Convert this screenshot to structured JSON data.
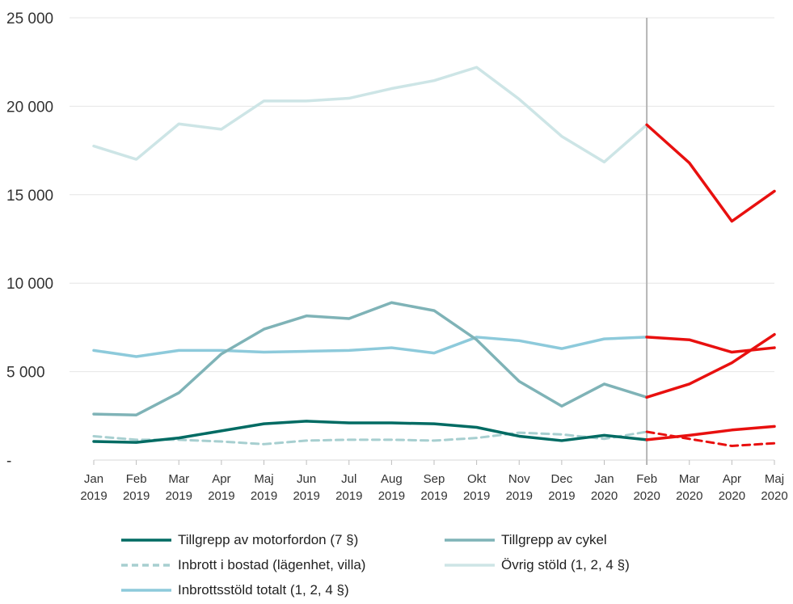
{
  "chart_data": {
    "type": "line",
    "title": "",
    "xlabel": "",
    "ylabel": "",
    "ylim": [
      0,
      25000
    ],
    "yticks": [
      {
        "value": 0,
        "label": "-"
      },
      {
        "value": 5000,
        "label": "5 000"
      },
      {
        "value": 10000,
        "label": "10 000"
      },
      {
        "value": 15000,
        "label": "15 000"
      },
      {
        "value": 20000,
        "label": "20 000"
      },
      {
        "value": 25000,
        "label": "25 000"
      }
    ],
    "grid": true,
    "legend_position": "bottom",
    "categories": [
      {
        "month": "Jan",
        "year": "2019"
      },
      {
        "month": "Feb",
        "year": "2019"
      },
      {
        "month": "Mar",
        "year": "2019"
      },
      {
        "month": "Apr",
        "year": "2019"
      },
      {
        "month": "Maj",
        "year": "2019"
      },
      {
        "month": "Jun",
        "year": "2019"
      },
      {
        "month": "Jul",
        "year": "2019"
      },
      {
        "month": "Aug",
        "year": "2019"
      },
      {
        "month": "Sep",
        "year": "2019"
      },
      {
        "month": "Okt",
        "year": "2019"
      },
      {
        "month": "Nov",
        "year": "2019"
      },
      {
        "month": "Dec",
        "year": "2019"
      },
      {
        "month": "Jan",
        "year": "2020"
      },
      {
        "month": "Feb",
        "year": "2020"
      },
      {
        "month": "Mar",
        "year": "2020"
      },
      {
        "month": "Apr",
        "year": "2020"
      },
      {
        "month": "Maj",
        "year": "2020"
      }
    ],
    "marker_category": "Feb 2020",
    "highlight_color": "#e8100f",
    "series": [
      {
        "name": "Tillgrepp av motorfordon (7 §)",
        "color": "#006b63",
        "dashed": false,
        "width": 3.5,
        "values": [
          1050,
          1000,
          1250,
          1650,
          2050,
          2200,
          2100,
          2100,
          2050,
          1850,
          1350,
          1100,
          1400,
          1150,
          1400,
          1700,
          1900
        ]
      },
      {
        "name": "Tillgrepp av cykel",
        "color": "#7fb3b7",
        "dashed": false,
        "width": 3.5,
        "values": [
          2600,
          2550,
          3800,
          6000,
          7400,
          8150,
          8000,
          8900,
          8450,
          6800,
          4450,
          3050,
          4300,
          3550,
          4300,
          5500,
          7100
        ]
      },
      {
        "name": "Inbrott i bostad (lägenhet, villa)",
        "color": "#a7cfd0",
        "dashed": true,
        "width": 3,
        "values": [
          1350,
          1150,
          1150,
          1050,
          900,
          1100,
          1150,
          1150,
          1100,
          1250,
          1550,
          1450,
          1200,
          1600,
          1200,
          800,
          950
        ]
      },
      {
        "name": "Övrig stöld  (1, 2, 4 §)",
        "color": "#cde5e6",
        "dashed": false,
        "width": 3.5,
        "values": [
          17750,
          17000,
          19000,
          18700,
          20300,
          20300,
          20450,
          21000,
          21450,
          22200,
          20400,
          18300,
          16850,
          18950,
          16800,
          13500,
          15200
        ]
      },
      {
        "name": "Inbrottsstöld totalt (1, 2, 4 §)",
        "color": "#8dcadb",
        "dashed": false,
        "width": 3.5,
        "values": [
          6200,
          5850,
          6200,
          6200,
          6100,
          6150,
          6200,
          6350,
          6050,
          6950,
          6750,
          6300,
          6850,
          6950,
          6800,
          6100,
          6350
        ]
      }
    ]
  }
}
